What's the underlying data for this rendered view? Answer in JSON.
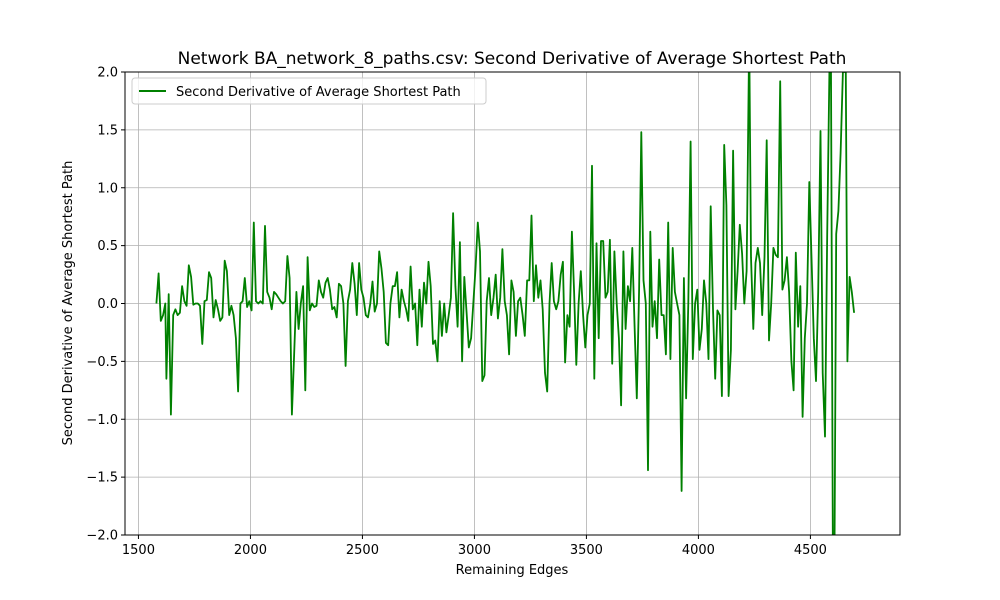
{
  "chart_data": {
    "type": "line",
    "title": "Network BA_network_8_paths.csv: Second Derivative of Average Shortest Path",
    "xlabel": "Remaining Edges",
    "ylabel": "Second Derivative of Average Shortest Path",
    "xlim": [
      1440,
      4900
    ],
    "ylim": [
      -2.0,
      2.0
    ],
    "x_ticks": [
      "1500",
      "2000",
      "2500",
      "3000",
      "3500",
      "4000",
      "4500"
    ],
    "y_ticks": [
      "−2.0",
      "−1.5",
      "−1.0",
      "−0.5",
      "0.0",
      "0.5",
      "1.0",
      "1.5",
      "2.0"
    ],
    "grid": true,
    "legend_position": "top-left",
    "series": [
      {
        "name": "Second Derivative of Average Shortest Path",
        "color": "#008000",
        "points": [
          [
            1580,
            0.0
          ],
          [
            1590,
            0.26
          ],
          [
            1600,
            -0.15
          ],
          [
            1610,
            -0.1
          ],
          [
            1620,
            0.0
          ],
          [
            1625,
            -0.65
          ],
          [
            1635,
            0.08
          ],
          [
            1645,
            -0.96
          ],
          [
            1655,
            -0.1
          ],
          [
            1665,
            -0.05
          ],
          [
            1675,
            -0.1
          ],
          [
            1685,
            -0.08
          ],
          [
            1695,
            0.15
          ],
          [
            1705,
            0.02
          ],
          [
            1715,
            -0.02
          ],
          [
            1725,
            0.33
          ],
          [
            1735,
            0.23
          ],
          [
            1745,
            -0.01
          ],
          [
            1755,
            0.0
          ],
          [
            1765,
            0.0
          ],
          [
            1775,
            -0.02
          ],
          [
            1785,
            -0.35
          ],
          [
            1795,
            0.02
          ],
          [
            1805,
            0.03
          ],
          [
            1815,
            0.27
          ],
          [
            1825,
            0.22
          ],
          [
            1835,
            -0.12
          ],
          [
            1845,
            0.03
          ],
          [
            1855,
            -0.05
          ],
          [
            1865,
            -0.15
          ],
          [
            1875,
            -0.12
          ],
          [
            1885,
            0.37
          ],
          [
            1895,
            0.28
          ],
          [
            1905,
            -0.1
          ],
          [
            1915,
            -0.02
          ],
          [
            1925,
            -0.1
          ],
          [
            1935,
            -0.3
          ],
          [
            1945,
            -0.76
          ],
          [
            1955,
            0.0
          ],
          [
            1965,
            0.02
          ],
          [
            1975,
            0.22
          ],
          [
            1985,
            -0.03
          ],
          [
            1995,
            0.02
          ],
          [
            2005,
            -0.06
          ],
          [
            2015,
            0.7
          ],
          [
            2025,
            0.02
          ],
          [
            2035,
            0.0
          ],
          [
            2045,
            0.02
          ],
          [
            2055,
            0.0
          ],
          [
            2065,
            0.67
          ],
          [
            2075,
            0.1
          ],
          [
            2085,
            0.05
          ],
          [
            2095,
            -0.05
          ],
          [
            2105,
            0.1
          ],
          [
            2115,
            0.08
          ],
          [
            2125,
            0.05
          ],
          [
            2135,
            0.02
          ],
          [
            2145,
            0.0
          ],
          [
            2155,
            0.02
          ],
          [
            2165,
            0.41
          ],
          [
            2175,
            0.22
          ],
          [
            2185,
            -0.96
          ],
          [
            2195,
            -0.45
          ],
          [
            2205,
            0.1
          ],
          [
            2215,
            -0.22
          ],
          [
            2225,
            0.0
          ],
          [
            2235,
            0.15
          ],
          [
            2245,
            -0.75
          ],
          [
            2255,
            0.4
          ],
          [
            2265,
            -0.06
          ],
          [
            2275,
            0.0
          ],
          [
            2285,
            -0.03
          ],
          [
            2295,
            -0.02
          ],
          [
            2305,
            0.2
          ],
          [
            2315,
            0.1
          ],
          [
            2325,
            0.05
          ],
          [
            2335,
            0.18
          ],
          [
            2345,
            0.22
          ],
          [
            2355,
            0.12
          ],
          [
            2365,
            -0.05
          ],
          [
            2375,
            -0.03
          ],
          [
            2385,
            -0.12
          ],
          [
            2395,
            0.17
          ],
          [
            2405,
            0.15
          ],
          [
            2415,
            0.0
          ],
          [
            2425,
            -0.54
          ],
          [
            2435,
            0.02
          ],
          [
            2445,
            0.12
          ],
          [
            2455,
            0.35
          ],
          [
            2465,
            0.17
          ],
          [
            2475,
            -0.1
          ],
          [
            2485,
            0.35
          ],
          [
            2495,
            0.12
          ],
          [
            2505,
            0.05
          ],
          [
            2515,
            -0.1
          ],
          [
            2525,
            -0.12
          ],
          [
            2535,
            0.0
          ],
          [
            2545,
            0.19
          ],
          [
            2555,
            -0.07
          ],
          [
            2565,
            0.0
          ],
          [
            2575,
            0.45
          ],
          [
            2585,
            0.3
          ],
          [
            2595,
            0.1
          ],
          [
            2605,
            -0.34
          ],
          [
            2615,
            -0.36
          ],
          [
            2625,
            0.0
          ],
          [
            2635,
            0.15
          ],
          [
            2645,
            0.15
          ],
          [
            2655,
            0.27
          ],
          [
            2665,
            -0.12
          ],
          [
            2675,
            0.12
          ],
          [
            2685,
            0.02
          ],
          [
            2695,
            -0.05
          ],
          [
            2705,
            -0.15
          ],
          [
            2715,
            0.32
          ],
          [
            2725,
            -0.05
          ],
          [
            2735,
            0.0
          ],
          [
            2745,
            -0.36
          ],
          [
            2755,
            0.12
          ],
          [
            2765,
            -0.2
          ],
          [
            2775,
            0.18
          ],
          [
            2785,
            0.0
          ],
          [
            2795,
            0.36
          ],
          [
            2805,
            0.15
          ],
          [
            2815,
            -0.35
          ],
          [
            2825,
            -0.32
          ],
          [
            2835,
            -0.5
          ],
          [
            2845,
            0.02
          ],
          [
            2855,
            -0.28
          ],
          [
            2865,
            0.0
          ],
          [
            2875,
            -0.25
          ],
          [
            2885,
            -0.1
          ],
          [
            2895,
            0.05
          ],
          [
            2905,
            0.78
          ],
          [
            2915,
            0.15
          ],
          [
            2925,
            -0.2
          ],
          [
            2935,
            0.53
          ],
          [
            2945,
            -0.5
          ],
          [
            2955,
            0.23
          ],
          [
            2965,
            -0.08
          ],
          [
            2975,
            -0.38
          ],
          [
            2985,
            -0.3
          ],
          [
            2995,
            0.0
          ],
          [
            3005,
            0.3
          ],
          [
            3015,
            0.7
          ],
          [
            3025,
            0.45
          ],
          [
            3035,
            -0.67
          ],
          [
            3045,
            -0.62
          ],
          [
            3055,
            0.02
          ],
          [
            3065,
            0.22
          ],
          [
            3075,
            -0.1
          ],
          [
            3085,
            0.05
          ],
          [
            3095,
            0.25
          ],
          [
            3105,
            -0.13
          ],
          [
            3115,
            0.05
          ],
          [
            3125,
            0.47
          ],
          [
            3135,
            0.02
          ],
          [
            3145,
            -0.1
          ],
          [
            3155,
            -0.44
          ],
          [
            3165,
            0.2
          ],
          [
            3175,
            0.1
          ],
          [
            3185,
            -0.28
          ],
          [
            3195,
            0.02
          ],
          [
            3205,
            0.05
          ],
          [
            3215,
            -0.1
          ],
          [
            3225,
            -0.28
          ],
          [
            3235,
            0.2
          ],
          [
            3245,
            0.2
          ],
          [
            3255,
            0.76
          ],
          [
            3265,
            0.02
          ],
          [
            3275,
            0.33
          ],
          [
            3285,
            0.05
          ],
          [
            3295,
            0.2
          ],
          [
            3305,
            -0.05
          ],
          [
            3315,
            -0.6
          ],
          [
            3325,
            -0.76
          ],
          [
            3335,
            0.0
          ],
          [
            3345,
            0.35
          ],
          [
            3355,
            0.02
          ],
          [
            3365,
            -0.05
          ],
          [
            3375,
            0.02
          ],
          [
            3385,
            0.25
          ],
          [
            3395,
            0.36
          ],
          [
            3405,
            -0.51
          ],
          [
            3415,
            -0.1
          ],
          [
            3425,
            -0.2
          ],
          [
            3435,
            0.62
          ],
          [
            3445,
            0.1
          ],
          [
            3455,
            -0.53
          ],
          [
            3465,
            0.0
          ],
          [
            3475,
            0.28
          ],
          [
            3485,
            -0.1
          ],
          [
            3495,
            -0.38
          ],
          [
            3505,
            -0.1
          ],
          [
            3515,
            0.0
          ],
          [
            3525,
            1.19
          ],
          [
            3535,
            -0.65
          ],
          [
            3545,
            0.52
          ],
          [
            3555,
            -0.3
          ],
          [
            3565,
            0.54
          ],
          [
            3575,
            0.54
          ],
          [
            3585,
            0.05
          ],
          [
            3595,
            0.1
          ],
          [
            3605,
            0.55
          ],
          [
            3615,
            -0.52
          ],
          [
            3625,
            0.45
          ],
          [
            3635,
            0.0
          ],
          [
            3645,
            -0.3
          ],
          [
            3655,
            -0.88
          ],
          [
            3665,
            0.45
          ],
          [
            3675,
            -0.22
          ],
          [
            3685,
            0.15
          ],
          [
            3695,
            0.02
          ],
          [
            3705,
            0.48
          ],
          [
            3715,
            -0.2
          ],
          [
            3725,
            -0.82
          ],
          [
            3735,
            0.12
          ],
          [
            3745,
            1.48
          ],
          [
            3755,
            0.2
          ],
          [
            3765,
            0.0
          ],
          [
            3775,
            -1.44
          ],
          [
            3785,
            0.62
          ],
          [
            3795,
            -0.2
          ],
          [
            3805,
            0.02
          ],
          [
            3815,
            -0.3
          ],
          [
            3825,
            0.38
          ],
          [
            3835,
            -0.1
          ],
          [
            3845,
            -0.1
          ],
          [
            3855,
            -0.44
          ],
          [
            3865,
            0.7
          ],
          [
            3875,
            -0.48
          ],
          [
            3885,
            0.48
          ],
          [
            3895,
            0.1
          ],
          [
            3905,
            0.0
          ],
          [
            3915,
            -0.1
          ],
          [
            3925,
            -1.62
          ],
          [
            3935,
            0.22
          ],
          [
            3945,
            -0.82
          ],
          [
            3955,
            0.0
          ],
          [
            3965,
            1.4
          ],
          [
            3975,
            -0.48
          ],
          [
            3985,
            0.0
          ],
          [
            3995,
            0.12
          ],
          [
            4005,
            -0.4
          ],
          [
            4015,
            -0.22
          ],
          [
            4025,
            0.2
          ],
          [
            4035,
            0.0
          ],
          [
            4045,
            -0.48
          ],
          [
            4055,
            0.84
          ],
          [
            4065,
            -0.05
          ],
          [
            4075,
            -0.65
          ],
          [
            4085,
            -0.06
          ],
          [
            4095,
            -0.1
          ],
          [
            4105,
            -0.8
          ],
          [
            4115,
            1.37
          ],
          [
            4125,
            0.85
          ],
          [
            4135,
            -0.8
          ],
          [
            4145,
            -0.4
          ],
          [
            4155,
            1.32
          ],
          [
            4165,
            -0.05
          ],
          [
            4175,
            0.28
          ],
          [
            4185,
            0.68
          ],
          [
            4195,
            0.43
          ],
          [
            4205,
            0.0
          ],
          [
            4215,
            0.28
          ],
          [
            4225,
            2.0
          ],
          [
            4228,
            2.0
          ],
          [
            4235,
            0.4
          ],
          [
            4245,
            -0.22
          ],
          [
            4255,
            0.35
          ],
          [
            4265,
            0.48
          ],
          [
            4275,
            0.35
          ],
          [
            4285,
            -0.1
          ],
          [
            4295,
            0.4
          ],
          [
            4305,
            1.41
          ],
          [
            4315,
            -0.32
          ],
          [
            4325,
            0.0
          ],
          [
            4335,
            0.48
          ],
          [
            4345,
            0.42
          ],
          [
            4355,
            0.4
          ],
          [
            4365,
            1.92
          ],
          [
            4375,
            0.12
          ],
          [
            4385,
            0.2
          ],
          [
            4395,
            0.4
          ],
          [
            4405,
            0.1
          ],
          [
            4415,
            -0.5
          ],
          [
            4425,
            -0.75
          ],
          [
            4435,
            0.44
          ],
          [
            4445,
            -0.2
          ],
          [
            4455,
            0.15
          ],
          [
            4465,
            -0.98
          ],
          [
            4475,
            -0.3
          ],
          [
            4485,
            0.0
          ],
          [
            4495,
            1.05
          ],
          [
            4505,
            0.4
          ],
          [
            4515,
            -0.3
          ],
          [
            4525,
            -0.67
          ],
          [
            4535,
            0.1
          ],
          [
            4545,
            1.49
          ],
          [
            4555,
            -0.6
          ],
          [
            4565,
            -1.15
          ],
          [
            4575,
            0.6
          ],
          [
            4585,
            2.0
          ],
          [
            4592,
            2.0
          ],
          [
            4600,
            -2.0
          ],
          [
            4608,
            -2.0
          ],
          [
            4615,
            0.6
          ],
          [
            4625,
            0.8
          ],
          [
            4635,
            1.3
          ],
          [
            4645,
            2.0
          ],
          [
            4658,
            2.0
          ],
          [
            4665,
            -0.5
          ],
          [
            4675,
            0.23
          ],
          [
            4685,
            0.1
          ],
          [
            4695,
            -0.08
          ]
        ]
      }
    ]
  }
}
